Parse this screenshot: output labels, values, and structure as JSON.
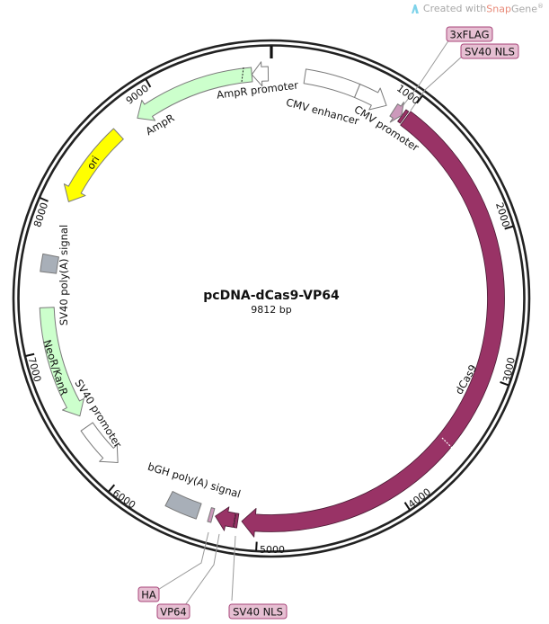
{
  "map": {
    "title": "pcDNA-dCas9-VP64",
    "length_label": "9812 bp",
    "length_bp": 9812
  },
  "logo": {
    "prefix": "Created with ",
    "brand_snap": "Snap",
    "brand_gene": "Gene",
    "registered": "®",
    "icon": "snapgene-logo-icon"
  },
  "ticks": [
    "1000",
    "2000",
    "3000",
    "4000",
    "5000",
    "6000",
    "7000",
    "8000",
    "9000"
  ],
  "features": [
    {
      "name": "AmpR promoter",
      "start": 9676,
      "end": 9790,
      "direction": "ccw",
      "color": "#ffffff"
    },
    {
      "name": "AmpR",
      "start": 8814,
      "end": 9676,
      "direction": "ccw",
      "color": "#ccffcc"
    },
    {
      "name": "ori",
      "start": 8054,
      "end": 8643,
      "direction": "ccw",
      "color": "#ffff00"
    },
    {
      "name": "SV40 poly(A) signal",
      "start": 7540,
      "end": 7660,
      "direction": "none",
      "color": "#a8afb8"
    },
    {
      "name": "NeoR/KanR",
      "start": 6500,
      "end": 7296,
      "direction": "ccw",
      "color": "#ccffcc"
    },
    {
      "name": "SV40 promoter",
      "start": 6081,
      "end": 6411,
      "direction": "ccw",
      "color": "#ffffff"
    },
    {
      "name": "bGH poly(A) signal",
      "start": 5420,
      "end": 5645,
      "direction": "none",
      "color": "#a8afb8"
    },
    {
      "name": "HA",
      "start": 5318,
      "end": 5342,
      "direction": "none",
      "color": "#cc99bb"
    },
    {
      "name": "VP64",
      "start": 5165,
      "end": 5300,
      "direction": "cw",
      "color": "#993366"
    },
    {
      "name": "SV40 NLS",
      "start": 5140,
      "end": 5160,
      "direction": "none",
      "color": "#993366"
    },
    {
      "name": "dCas9",
      "start": 1000,
      "end": 5113,
      "direction": "cw",
      "color": "#993366"
    },
    {
      "name": "SV40 NLS",
      "start": 968,
      "end": 990,
      "direction": "none",
      "color": "#993366"
    },
    {
      "name": "3xFLAG",
      "start": 900,
      "end": 966,
      "direction": "cw",
      "color": "#cc99bb"
    },
    {
      "name": "CMV enhancer",
      "start": 234,
      "end": 613,
      "direction": "none",
      "color": "#ffffff"
    },
    {
      "name": "CMV promoter",
      "start": 613,
      "end": 840,
      "direction": "cw",
      "color": "#ffffff"
    }
  ]
}
